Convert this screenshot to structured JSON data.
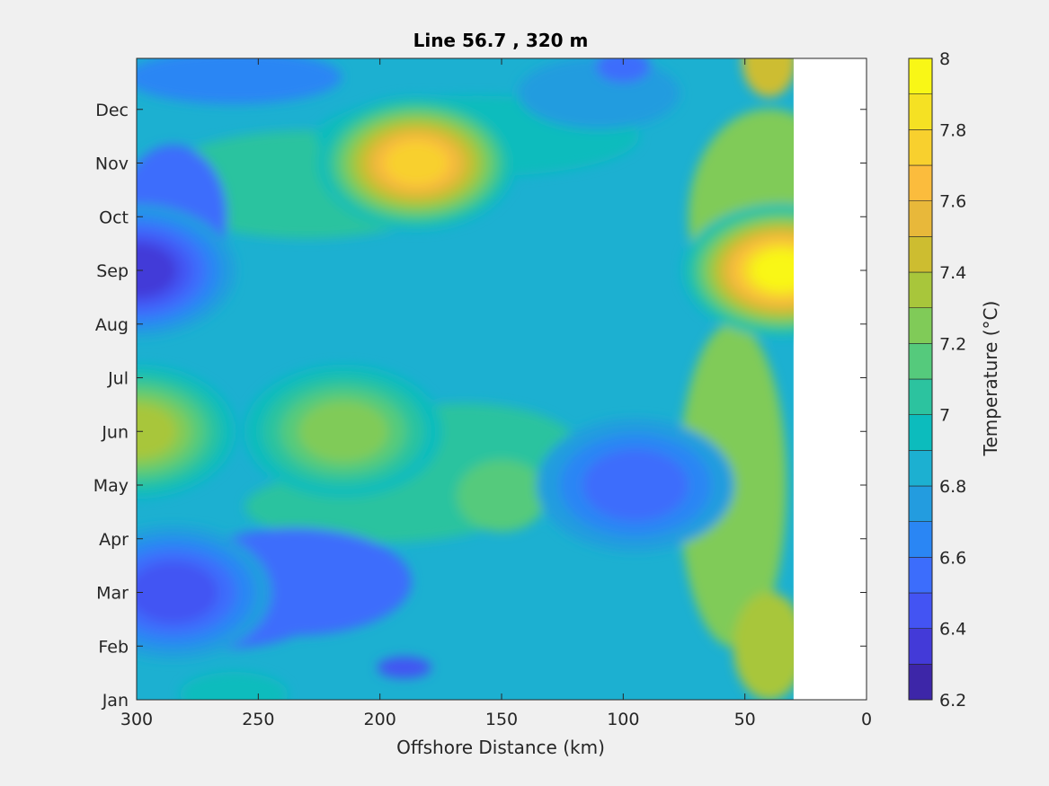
{
  "chart_data": {
    "type": "heatmap",
    "subtype": "filled-contour",
    "title": "Line 56.7 , 320 m",
    "xlabel": "Offshore Distance (km)",
    "ylabel": "",
    "xlim": [
      300,
      0
    ],
    "x_direction": "reversed",
    "x_ticks": [
      "300",
      "250",
      "200",
      "150",
      "100",
      "50",
      "0"
    ],
    "y_ticks": [
      "Jan",
      "Feb",
      "Mar",
      "Apr",
      "May",
      "Jun",
      "Jul",
      "Aug",
      "Sep",
      "Oct",
      "Nov",
      "Dec"
    ],
    "data_extent_x_km": [
      300,
      30
    ],
    "colorbar": {
      "label": "Temperature (°C)",
      "range": [
        6.2,
        8.0
      ],
      "step": 0.1,
      "tick_labels": [
        "6.2",
        "6.4",
        "6.6",
        "6.8",
        "7",
        "7.2",
        "7.4",
        "7.6",
        "7.8",
        "8"
      ],
      "colors": [
        "#3d26a8",
        "#433ad8",
        "#4354f3",
        "#3c6dfc",
        "#2a86f4",
        "#239cdf",
        "#1cb0d1",
        "#0cbcbd",
        "#2cc39f",
        "#55ca7c",
        "#80cb58",
        "#a8c63b",
        "#cdbd30",
        "#e8b83a",
        "#fbbc3d",
        "#f8d02e",
        "#f5e123",
        "#f9f716"
      ]
    },
    "features": [
      {
        "x_km": 300,
        "month": "Sep",
        "value": 6.3,
        "note": "cold core at western edge"
      },
      {
        "x_km": 285,
        "month": "Mar",
        "value": 6.4
      },
      {
        "x_km": 185,
        "month": "Nov",
        "value": 7.7,
        "note": "warm core"
      },
      {
        "x_km": 95,
        "month": "May",
        "value": 6.5
      },
      {
        "x_km": 35,
        "month": "Sep",
        "value": 7.9,
        "note": "warm core near coast"
      },
      {
        "x_km": 300,
        "month": "Jun",
        "value": 7.3
      },
      {
        "x_km": 215,
        "month": "Jun",
        "value": 7.2
      }
    ]
  }
}
